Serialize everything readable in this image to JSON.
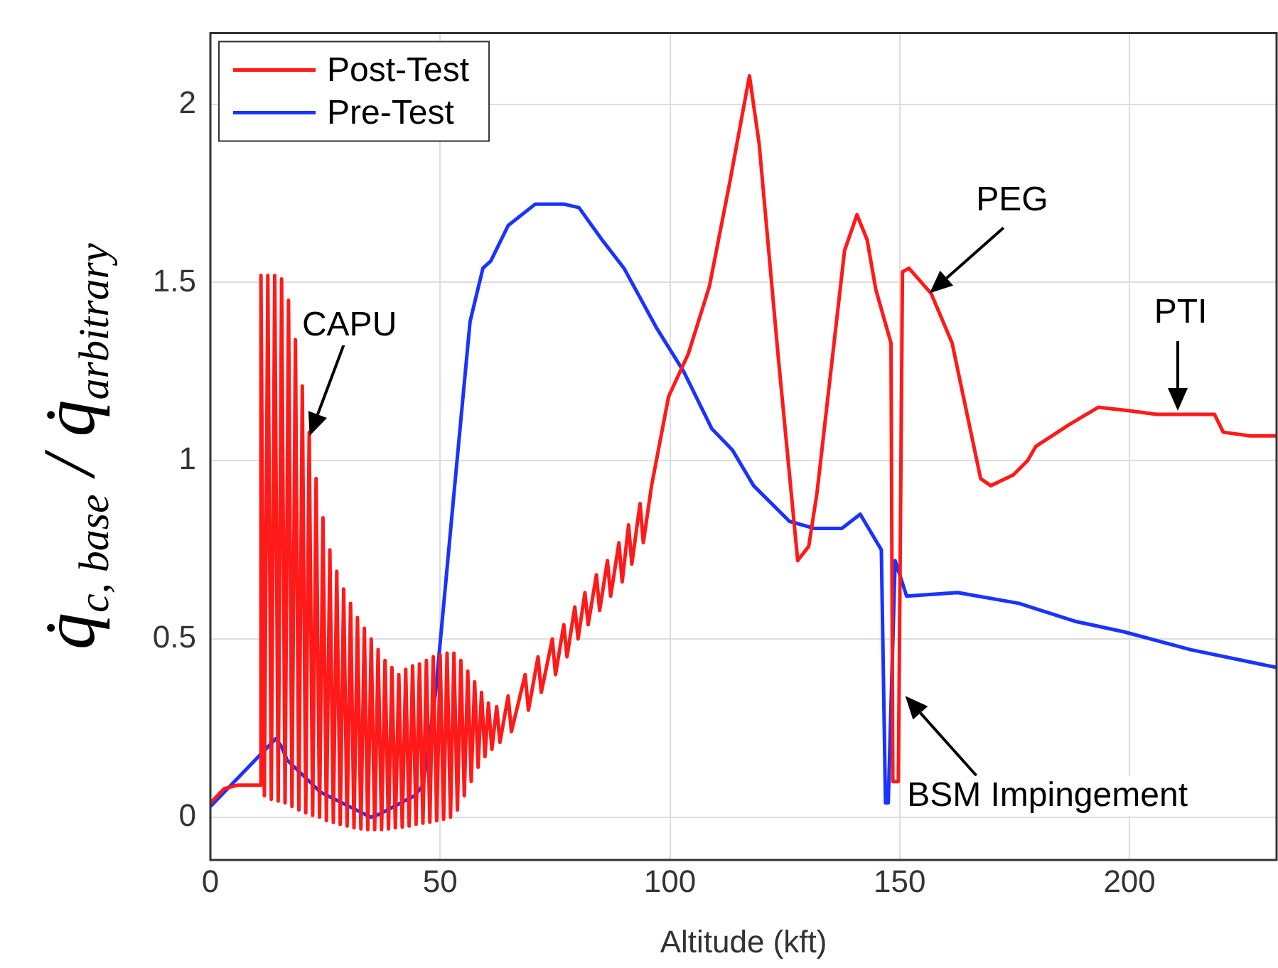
{
  "chart_data": {
    "type": "line",
    "xlabel": "Altitude (kft)",
    "ylabel": "q̇$_{c, base}$ / q̇$_{arbitrary}$",
    "xlim": [
      0,
      232
    ],
    "ylim": [
      -0.12,
      2.2
    ],
    "xticks": [
      0,
      50,
      100,
      150,
      200
    ],
    "yticks": [
      0,
      0.5,
      1,
      1.5,
      2
    ],
    "grid": true,
    "legend": "top left",
    "marker": "none",
    "line_style": "solid",
    "annotations": [
      {
        "text": "CAPU",
        "x": 21.6,
        "y": 1.07
      },
      {
        "text": "PEG",
        "x": 156.5,
        "y": 1.47
      },
      {
        "text": "PTI",
        "x": 210.5,
        "y": 1.14
      },
      {
        "text": "BSM Impingement",
        "x": 151.2,
        "y": 0.34
      }
    ],
    "series": [
      {
        "name": "Post-Test",
        "color": "#ff1a1a",
        "x": [
          0,
          3,
          6,
          10.9,
          11,
          11.75,
          12.5,
          13.25,
          14,
          14.75,
          15.5,
          16.25,
          17,
          17.75,
          18.5,
          19.25,
          20,
          20.75,
          21.5,
          22.25,
          23,
          23.75,
          24.5,
          25.25,
          26,
          26.75,
          27.5,
          28.25,
          29,
          29.75,
          30.5,
          31.25,
          32,
          32.75,
          33.5,
          34.25,
          35,
          35.75,
          36.5,
          37.25,
          38,
          38.75,
          39.5,
          40.25,
          41,
          41.75,
          42.5,
          43.25,
          44,
          44.75,
          45.5,
          46.25,
          47,
          47.75,
          48.5,
          49.25,
          50,
          50.75,
          51.5,
          52.25,
          53,
          53.75,
          54.5,
          55.25,
          56,
          56.75,
          57.5,
          58.25,
          59,
          59.75,
          60.5,
          61.25,
          62.3,
          63,
          64.8,
          65.5,
          68.5,
          69.2,
          71.3,
          72,
          74.4,
          75.1,
          76.9,
          77.6,
          79.3,
          80,
          81.5,
          82.2,
          84,
          84.7,
          86.4,
          87.1,
          88.9,
          89.6,
          91,
          91.7,
          93.5,
          94.2,
          96,
          99.7,
          104,
          108.6,
          113,
          117.3,
          119.4,
          123.5,
          127.8,
          130.2,
          132,
          138,
          140.7,
          142.9,
          144.8,
          148.1,
          148.5,
          149.7,
          150.6,
          152,
          156.8,
          161.4,
          167.6,
          169.8,
          174.7,
          177.8,
          179.6,
          186.7,
          193.2,
          200,
          205.9,
          218.5,
          220.4,
          226.2,
          232
        ],
        "values": [
          0.04,
          0.08,
          0.09,
          0.09,
          1.52,
          0.06,
          1.52,
          0.05,
          1.52,
          0.045,
          1.51,
          0.04,
          1.45,
          0.03,
          1.34,
          0.02,
          1.21,
          0.012,
          1.08,
          0.005,
          0.95,
          0,
          0.84,
          -0.01,
          0.75,
          -0.015,
          0.69,
          -0.02,
          0.64,
          -0.025,
          0.6,
          -0.03,
          0.56,
          -0.033,
          0.53,
          -0.035,
          0.5,
          -0.035,
          0.47,
          -0.035,
          0.44,
          -0.033,
          0.42,
          -0.03,
          0.4,
          -0.028,
          0.415,
          -0.025,
          0.425,
          -0.02,
          0.43,
          -0.017,
          0.44,
          -0.014,
          0.45,
          -0.01,
          0.455,
          -0.006,
          0.46,
          0,
          0.46,
          0.02,
          0.44,
          0.06,
          0.41,
          0.1,
          0.38,
          0.14,
          0.35,
          0.17,
          0.32,
          0.19,
          0.31,
          0.21,
          0.34,
          0.24,
          0.4,
          0.3,
          0.45,
          0.35,
          0.5,
          0.4,
          0.54,
          0.45,
          0.59,
          0.5,
          0.63,
          0.54,
          0.68,
          0.58,
          0.72,
          0.62,
          0.77,
          0.66,
          0.82,
          0.71,
          0.88,
          0.77,
          0.93,
          1.18,
          1.3,
          1.49,
          1.78,
          2.08,
          1.89,
          1.3,
          0.72,
          0.76,
          0.91,
          1.59,
          1.69,
          1.62,
          1.48,
          1.33,
          0.1,
          0.1,
          1.53,
          1.54,
          1.47,
          1.33,
          0.95,
          0.93,
          0.96,
          1,
          1.04,
          1.1,
          1.15,
          1.14,
          1.13,
          1.13,
          1.08,
          1.07,
          1.07
        ]
      },
      {
        "name": "Pre-Test",
        "color": "#1a33ff",
        "x": [
          0,
          14.2,
          15.4,
          16.7,
          24,
          34.9,
          37,
          44.4,
          46.3,
          49,
          52.8,
          56.5,
          59.3,
          61,
          64.8,
          70.7,
          76.9,
          80.2,
          85.2,
          90,
          97.2,
          103,
          109.1,
          113.6,
          118.2,
          126,
          131.5,
          137.4,
          141.4,
          146,
          146.9,
          147.5,
          149,
          151.5,
          162.6,
          175.9,
          188,
          198.8,
          213.3,
          232
        ],
        "values": [
          0.03,
          0.22,
          0.2,
          0.16,
          0.07,
          0,
          0.01,
          0.06,
          0.09,
          0.35,
          0.88,
          1.39,
          1.54,
          1.56,
          1.66,
          1.72,
          1.72,
          1.71,
          1.62,
          1.54,
          1.37,
          1.25,
          1.09,
          1.03,
          0.93,
          0.83,
          0.81,
          0.81,
          0.85,
          0.75,
          0.04,
          0.04,
          0.72,
          0.62,
          0.63,
          0.6,
          0.55,
          0.52,
          0.47,
          0.42
        ]
      }
    ]
  }
}
